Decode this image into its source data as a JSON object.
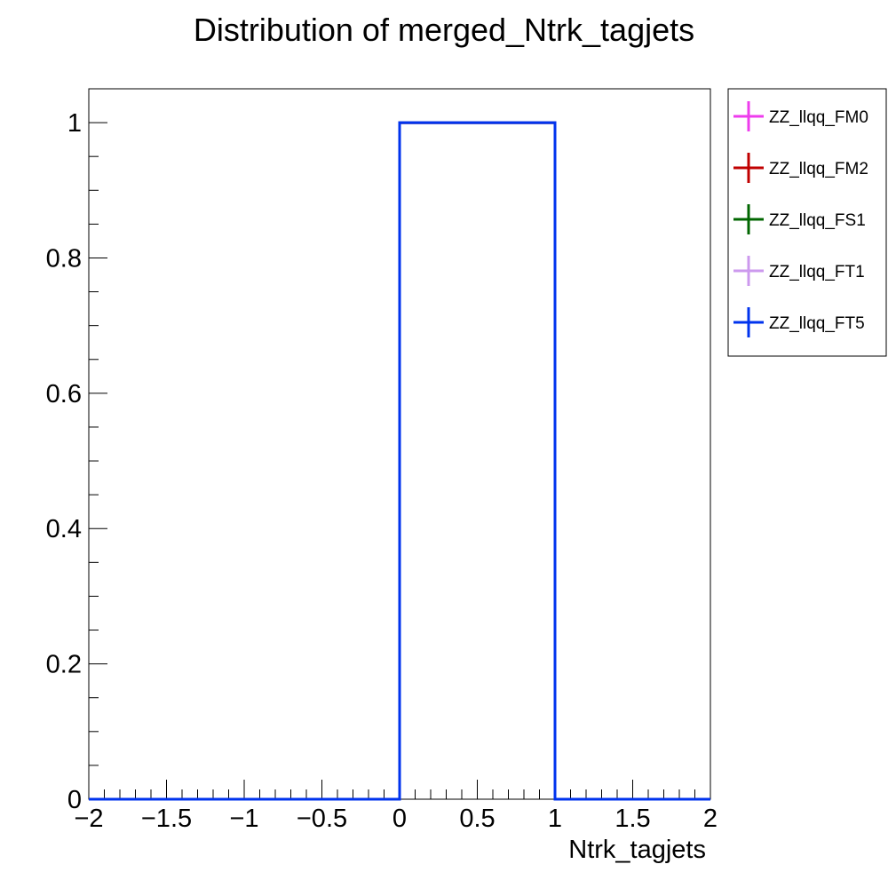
{
  "chart_data": {
    "type": "line",
    "step": true,
    "title": "Distribution of merged_Ntrk_tagjets",
    "xlabel": "Ntrk_tagjets",
    "ylabel": "",
    "xlim": [
      -2,
      2
    ],
    "ylim": [
      0,
      1.05
    ],
    "x_ticks": [
      -2,
      -1.5,
      -1,
      -0.5,
      0,
      0.5,
      1,
      1.5,
      2
    ],
    "x_tick_labels": [
      "−2",
      "−1.5",
      "−1",
      "−0.5",
      "0",
      "0.5",
      "1",
      "1.5",
      "2"
    ],
    "y_ticks": [
      0,
      0.2,
      0.4,
      0.6,
      0.8,
      1
    ],
    "y_tick_labels": [
      "0",
      "0.2",
      "0.4",
      "0.6",
      "0.8",
      "1"
    ],
    "grid": false,
    "legend_position": "right",
    "bin_edges": [
      -2,
      -1,
      0,
      1,
      2
    ],
    "series": [
      {
        "name": "ZZ_llqq_FM0",
        "color": "#ee3ced",
        "values": [
          0,
          0,
          1,
          0
        ]
      },
      {
        "name": "ZZ_llqq_FM2",
        "color": "#c00000",
        "values": [
          0,
          0,
          1,
          0
        ]
      },
      {
        "name": "ZZ_llqq_FS1",
        "color": "#006600",
        "values": [
          0,
          0,
          1,
          0
        ]
      },
      {
        "name": "ZZ_llqq_FT1",
        "color": "#cc99ee",
        "values": [
          0,
          0,
          1,
          0
        ]
      },
      {
        "name": "ZZ_llqq_FT5",
        "color": "#0033ee",
        "values": [
          0,
          0,
          1,
          0
        ]
      }
    ]
  }
}
